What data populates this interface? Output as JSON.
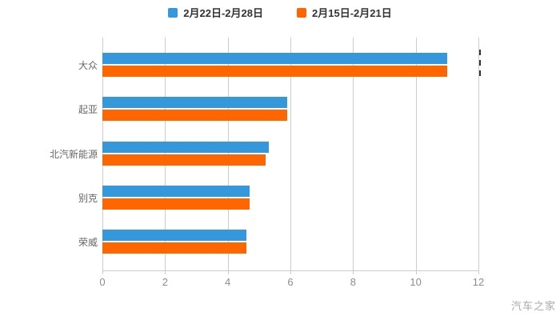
{
  "legend": {
    "items": [
      {
        "label": "2月22日-2月28日",
        "color": "#3498db"
      },
      {
        "label": "2月15日-2月21日",
        "color": "#ff6600"
      }
    ]
  },
  "watermark": "汽车之家",
  "colors": {
    "series_blue": "#3498db",
    "series_orange": "#ff6600",
    "grid": "#cccccc",
    "tick_text": "#8c8c8c",
    "category_text": "#666666",
    "legend_text": "#333333",
    "watermark_text": "#a9a9a9"
  },
  "chart_data": {
    "type": "bar",
    "orientation": "horizontal",
    "title": "",
    "xlabel": "",
    "ylabel": "",
    "categories": [
      "大众",
      "起亚",
      "北汽新能源",
      "别克",
      "荣威"
    ],
    "series": [
      {
        "name": "2月22日-2月28日",
        "color": "#3498db",
        "values": [
          11.0,
          5.9,
          5.3,
          4.7,
          4.6
        ]
      },
      {
        "name": "2月15日-2月21日",
        "color": "#ff6600",
        "values": [
          11.0,
          5.9,
          5.2,
          4.7,
          4.6
        ]
      }
    ],
    "xlim": [
      0,
      12
    ],
    "xticks": [
      0,
      2,
      4,
      6,
      8,
      10,
      12
    ],
    "grid": true,
    "legend_position": "top"
  }
}
